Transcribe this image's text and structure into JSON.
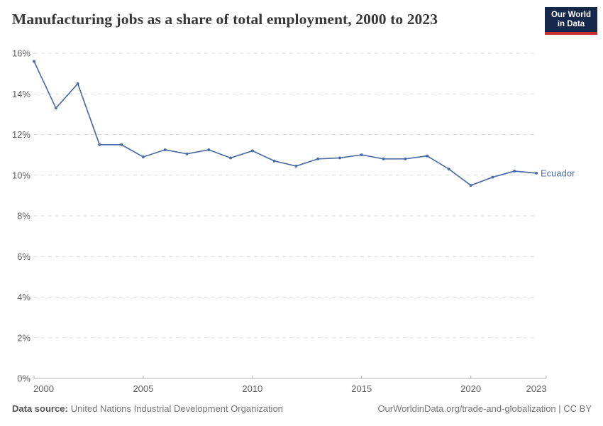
{
  "header": {
    "title": "Manufacturing jobs as a share of total employment, 2000 to 2023",
    "logo_line1": "Our World",
    "logo_line2": "in Data"
  },
  "chart_data": {
    "type": "line",
    "title": "Manufacturing jobs as a share of total employment, 2000 to 2023",
    "x": [
      2000,
      2001,
      2002,
      2003,
      2004,
      2005,
      2006,
      2007,
      2008,
      2009,
      2010,
      2011,
      2012,
      2013,
      2014,
      2015,
      2016,
      2017,
      2018,
      2019,
      2020,
      2021,
      2022,
      2023
    ],
    "series": [
      {
        "name": "Ecuador",
        "values": [
          15.6,
          13.3,
          14.5,
          11.5,
          11.5,
          10.9,
          11.25,
          11.05,
          11.25,
          10.85,
          11.2,
          10.7,
          10.45,
          10.8,
          10.85,
          11.0,
          10.8,
          10.8,
          10.95,
          10.3,
          9.5,
          9.9,
          10.2,
          10.1
        ]
      }
    ],
    "xlabel": "",
    "ylabel": "",
    "ylim": [
      0,
      16
    ],
    "ytick_values": [
      0,
      2,
      4,
      6,
      8,
      10,
      12,
      14,
      16
    ],
    "ytick_labels": [
      "0%",
      "2%",
      "4%",
      "6%",
      "8%",
      "10%",
      "12%",
      "14%",
      "16%"
    ],
    "xtick_values": [
      2000,
      2005,
      2010,
      2015,
      2020,
      2023
    ],
    "xtick_labels": [
      "2000",
      "2005",
      "2010",
      "2015",
      "2020",
      "2023"
    ],
    "grid": "horizontal-dashed",
    "legend_position": "end-of-line-label",
    "end_label": "Ecuador",
    "marker": "dot"
  },
  "footer": {
    "source_label": "Data source:",
    "source_text": "United Nations Industrial Development Organization",
    "credit_text": "OurWorldinData.org/trade-and-globalization | CC BY"
  },
  "colors": {
    "background": "#ffffff",
    "line": "#4c6da8",
    "entity_label": "#4c6da8",
    "grid": "#dcdcdc",
    "axis": "#b3b3b3",
    "tick_text": "#616161",
    "title_text": "#383838",
    "footer_text": "#757575",
    "footer_label": "#555555",
    "logo_bg": "#16294c",
    "logo_red": "#c32f30"
  }
}
